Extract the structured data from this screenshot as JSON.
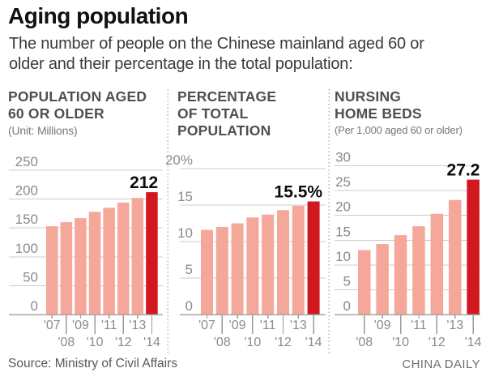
{
  "header": {
    "title": "Aging population",
    "subtitle_lines": [
      "The number of people on the Chinese mainland aged 60 or",
      "older and their percentage in the total population:"
    ]
  },
  "footer": {
    "source": "Source: Ministry of Civil Affairs",
    "credit": "CHINA DAILY"
  },
  "colors": {
    "bar": "#f5a79a",
    "bar_highlight": "#d2181f",
    "grid": "#cccccc",
    "axis": "#a6a6a6",
    "tick": "#9a9a9a",
    "y_label": "#8b8b8b",
    "x_label": "#8b8b8b",
    "value_label": "#0d0d0d",
    "header_text": "#4e4f51",
    "unit_text": "#77787a",
    "title_text": "#111111",
    "subtitle_text": "#3b3b3b",
    "source_text": "#57585a",
    "credit_text": "#6f6f70",
    "divider": "#b2b2b2"
  },
  "chart_data": [
    {
      "type": "bar",
      "title_lines": [
        "POPULATION AGED",
        "60 OR OLDER"
      ],
      "unit": "(Unit: Millions)",
      "categories": [
        "'07",
        "'08",
        "'09",
        "'10",
        "'11",
        "'12",
        "'13",
        "'14"
      ],
      "values": [
        153,
        160,
        167,
        178,
        185,
        194,
        202,
        212
      ],
      "highlight_index": 7,
      "highlight_label": "212",
      "ylim": [
        0,
        250
      ],
      "ytick_step": 50,
      "ytick_labels": [
        "250",
        "200",
        "150",
        "100",
        "50",
        "0"
      ],
      "xlabel_stagger_first": "top",
      "grid": true,
      "legend": "none"
    },
    {
      "type": "bar",
      "title_lines": [
        "PERCENTAGE",
        "OF TOTAL",
        "POPULATION"
      ],
      "unit": "",
      "categories": [
        "'07",
        "'08",
        "'09",
        "'10",
        "'11",
        "'12",
        "'13",
        "'14"
      ],
      "values": [
        11.6,
        12.0,
        12.5,
        13.3,
        13.7,
        14.3,
        14.9,
        15.5
      ],
      "highlight_index": 7,
      "highlight_label": "15.5%",
      "ylim": [
        0,
        20
      ],
      "ytick_step": 5,
      "ytick_labels": [
        "20%",
        "15",
        "10",
        "5",
        "0"
      ],
      "xlabel_stagger_first": "top",
      "grid": true,
      "legend": "none"
    },
    {
      "type": "bar",
      "title_lines": [
        "NURSING",
        "HOME BEDS"
      ],
      "unit": "(Per 1,000 aged 60 or older)",
      "categories": [
        "'08",
        "'09",
        "'10",
        "'11",
        "'12",
        "'13",
        "'14"
      ],
      "values": [
        13.0,
        14.2,
        16.0,
        17.8,
        20.3,
        23.1,
        27.2
      ],
      "highlight_index": 6,
      "highlight_label": "27.2",
      "ylim": [
        0,
        30
      ],
      "ytick_step": 5,
      "ytick_labels": [
        "30",
        "25",
        "20",
        "15",
        "10",
        "5",
        "0"
      ],
      "xlabel_stagger_first": "bottom",
      "grid": true,
      "legend": "none"
    }
  ]
}
